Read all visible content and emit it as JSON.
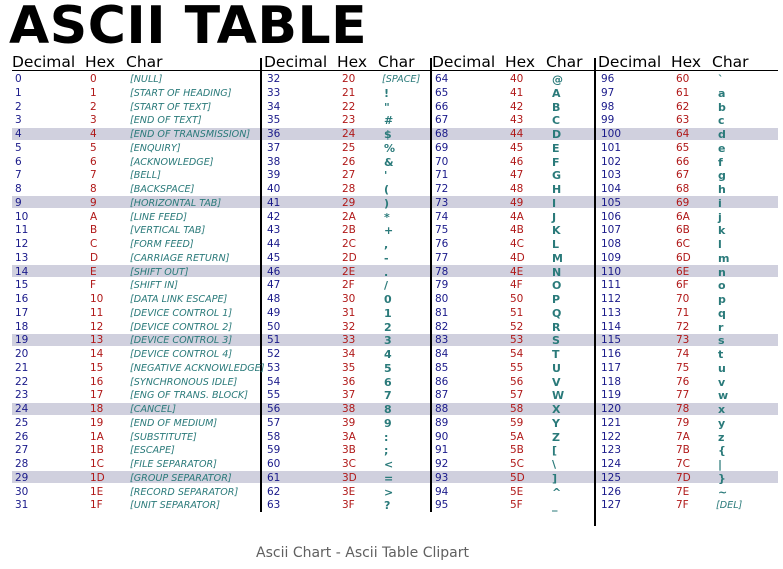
{
  "title": "ASCII TABLE",
  "caption": "Ascii Chart - Ascii Table Clipart",
  "headers": [
    "Decimal",
    "Hex",
    "Char"
  ],
  "highlighted_rows": [
    4,
    9,
    14,
    19,
    24,
    29
  ],
  "colors": {
    "decimal": "#1a1a8a",
    "hex": "#b01818",
    "char": "#2a7a7a",
    "band": "#d0d0de"
  },
  "columns": [
    [
      [
        "0",
        "0",
        "[NULL]"
      ],
      [
        "1",
        "1",
        "[START OF HEADING]"
      ],
      [
        "2",
        "2",
        "[START OF TEXT]"
      ],
      [
        "3",
        "3",
        "[END OF TEXT]"
      ],
      [
        "4",
        "4",
        "[END OF TRANSMISSION]"
      ],
      [
        "5",
        "5",
        "[ENQUIRY]"
      ],
      [
        "6",
        "6",
        "[ACKNOWLEDGE]"
      ],
      [
        "7",
        "7",
        "[BELL]"
      ],
      [
        "8",
        "8",
        "[BACKSPACE]"
      ],
      [
        "9",
        "9",
        "[HORIZONTAL TAB]"
      ],
      [
        "10",
        "A",
        "[LINE FEED]"
      ],
      [
        "11",
        "B",
        "[VERTICAL TAB]"
      ],
      [
        "12",
        "C",
        "[FORM FEED]"
      ],
      [
        "13",
        "D",
        "[CARRIAGE RETURN]"
      ],
      [
        "14",
        "E",
        "[SHIFT OUT]"
      ],
      [
        "15",
        "F",
        "[SHIFT IN]"
      ],
      [
        "16",
        "10",
        "[DATA LINK ESCAPE]"
      ],
      [
        "17",
        "11",
        "[DEVICE CONTROL 1]"
      ],
      [
        "18",
        "12",
        "[DEVICE CONTROL 2]"
      ],
      [
        "19",
        "13",
        "[DEVICE CONTROL 3]"
      ],
      [
        "20",
        "14",
        "[DEVICE CONTROL 4]"
      ],
      [
        "21",
        "15",
        "[NEGATIVE ACKNOWLEDGE]"
      ],
      [
        "22",
        "16",
        "[SYNCHRONOUS IDLE]"
      ],
      [
        "23",
        "17",
        "[ENG OF TRANS. BLOCK]"
      ],
      [
        "24",
        "18",
        "[CANCEL]"
      ],
      [
        "25",
        "19",
        "[END OF MEDIUM]"
      ],
      [
        "26",
        "1A",
        "[SUBSTITUTE]"
      ],
      [
        "27",
        "1B",
        "[ESCAPE]"
      ],
      [
        "28",
        "1C",
        "[FILE SEPARATOR]"
      ],
      [
        "29",
        "1D",
        "[GROUP SEPARATOR]"
      ],
      [
        "30",
        "1E",
        "[RECORD SEPARATOR]"
      ],
      [
        "31",
        "1F",
        "[UNIT SEPARATOR]"
      ]
    ],
    [
      [
        "32",
        "20",
        "[SPACE]"
      ],
      [
        "33",
        "21",
        "!"
      ],
      [
        "34",
        "22",
        "\""
      ],
      [
        "35",
        "23",
        "#"
      ],
      [
        "36",
        "24",
        "$"
      ],
      [
        "37",
        "25",
        "%"
      ],
      [
        "38",
        "26",
        "&"
      ],
      [
        "39",
        "27",
        "'"
      ],
      [
        "40",
        "28",
        "("
      ],
      [
        "41",
        "29",
        ")"
      ],
      [
        "42",
        "2A",
        "*"
      ],
      [
        "43",
        "2B",
        "+"
      ],
      [
        "44",
        "2C",
        ","
      ],
      [
        "45",
        "2D",
        "-"
      ],
      [
        "46",
        "2E",
        "."
      ],
      [
        "47",
        "2F",
        "/"
      ],
      [
        "48",
        "30",
        "0"
      ],
      [
        "49",
        "31",
        "1"
      ],
      [
        "50",
        "32",
        "2"
      ],
      [
        "51",
        "33",
        "3"
      ],
      [
        "52",
        "34",
        "4"
      ],
      [
        "53",
        "35",
        "5"
      ],
      [
        "54",
        "36",
        "6"
      ],
      [
        "55",
        "37",
        "7"
      ],
      [
        "56",
        "38",
        "8"
      ],
      [
        "57",
        "39",
        "9"
      ],
      [
        "58",
        "3A",
        ":"
      ],
      [
        "59",
        "3B",
        ";"
      ],
      [
        "60",
        "3C",
        "<"
      ],
      [
        "61",
        "3D",
        "="
      ],
      [
        "62",
        "3E",
        ">"
      ],
      [
        "63",
        "3F",
        "?"
      ]
    ],
    [
      [
        "64",
        "40",
        "@"
      ],
      [
        "65",
        "41",
        "A"
      ],
      [
        "66",
        "42",
        "B"
      ],
      [
        "67",
        "43",
        "C"
      ],
      [
        "68",
        "44",
        "D"
      ],
      [
        "69",
        "45",
        "E"
      ],
      [
        "70",
        "46",
        "F"
      ],
      [
        "71",
        "47",
        "G"
      ],
      [
        "72",
        "48",
        "H"
      ],
      [
        "73",
        "49",
        "I"
      ],
      [
        "74",
        "4A",
        "J"
      ],
      [
        "75",
        "4B",
        "K"
      ],
      [
        "76",
        "4C",
        "L"
      ],
      [
        "77",
        "4D",
        "M"
      ],
      [
        "78",
        "4E",
        "N"
      ],
      [
        "79",
        "4F",
        "O"
      ],
      [
        "80",
        "50",
        "P"
      ],
      [
        "81",
        "51",
        "Q"
      ],
      [
        "82",
        "52",
        "R"
      ],
      [
        "83",
        "53",
        "S"
      ],
      [
        "84",
        "54",
        "T"
      ],
      [
        "85",
        "55",
        "U"
      ],
      [
        "86",
        "56",
        "V"
      ],
      [
        "87",
        "57",
        "W"
      ],
      [
        "88",
        "58",
        "X"
      ],
      [
        "89",
        "59",
        "Y"
      ],
      [
        "90",
        "5A",
        "Z"
      ],
      [
        "91",
        "5B",
        "["
      ],
      [
        "92",
        "5C",
        "\\"
      ],
      [
        "93",
        "5D",
        "]"
      ],
      [
        "94",
        "5E",
        "^"
      ],
      [
        "95",
        "5F",
        "_"
      ]
    ],
    [
      [
        "96",
        "60",
        "`"
      ],
      [
        "97",
        "61",
        "a"
      ],
      [
        "98",
        "62",
        "b"
      ],
      [
        "99",
        "63",
        "c"
      ],
      [
        "100",
        "64",
        "d"
      ],
      [
        "101",
        "65",
        "e"
      ],
      [
        "102",
        "66",
        "f"
      ],
      [
        "103",
        "67",
        "g"
      ],
      [
        "104",
        "68",
        "h"
      ],
      [
        "105",
        "69",
        "i"
      ],
      [
        "106",
        "6A",
        "j"
      ],
      [
        "107",
        "6B",
        "k"
      ],
      [
        "108",
        "6C",
        "l"
      ],
      [
        "109",
        "6D",
        "m"
      ],
      [
        "110",
        "6E",
        "n"
      ],
      [
        "111",
        "6F",
        "o"
      ],
      [
        "112",
        "70",
        "p"
      ],
      [
        "113",
        "71",
        "q"
      ],
      [
        "114",
        "72",
        "r"
      ],
      [
        "115",
        "73",
        "s"
      ],
      [
        "116",
        "74",
        "t"
      ],
      [
        "117",
        "75",
        "u"
      ],
      [
        "118",
        "76",
        "v"
      ],
      [
        "119",
        "77",
        "w"
      ],
      [
        "120",
        "78",
        "x"
      ],
      [
        "121",
        "79",
        "y"
      ],
      [
        "122",
        "7A",
        "z"
      ],
      [
        "123",
        "7B",
        "{"
      ],
      [
        "124",
        "7C",
        "|"
      ],
      [
        "125",
        "7D",
        "}"
      ],
      [
        "126",
        "7E",
        "~"
      ],
      [
        "127",
        "7F",
        "[DEL]"
      ]
    ]
  ]
}
